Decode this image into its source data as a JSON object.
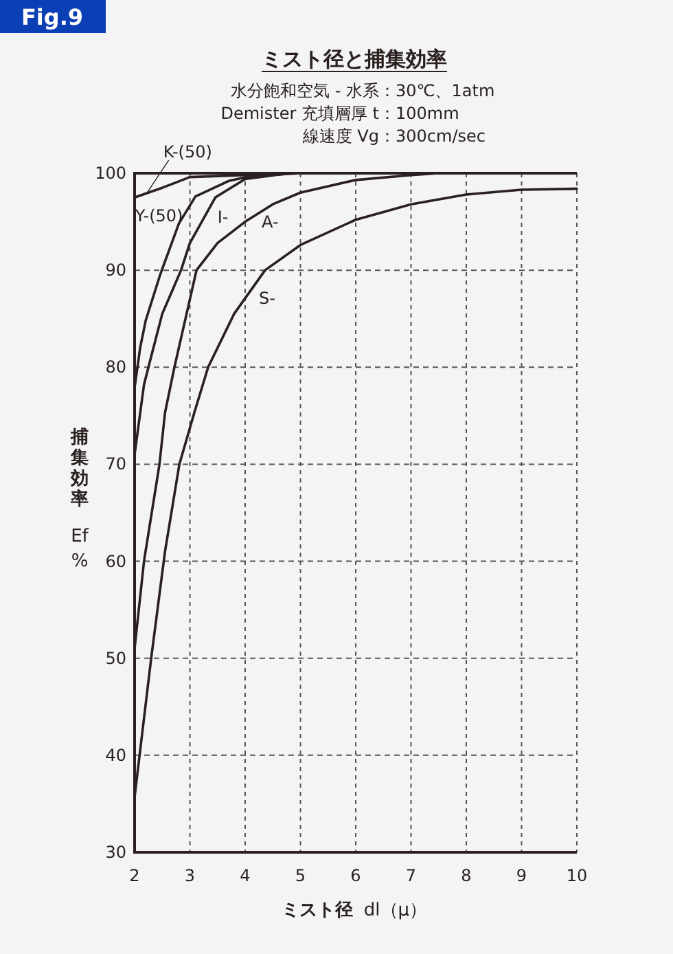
{
  "chart_data": {
    "type": "line",
    "title": "ミスト径と捕集効率",
    "subtitle": "水分飽和空気 - 水系：30℃、1atm\nDemister 充填層厚 t：100mm\n線速度 Vg：300cm/sec",
    "xlabel": "ミスト径 dl（μ）",
    "ylabel": "捕集効率 Ef %",
    "xlim": [
      2,
      10
    ],
    "ylim": [
      30,
      100
    ],
    "xticks": [
      2,
      3,
      4,
      5,
      6,
      7,
      8,
      9,
      10
    ],
    "yticks": [
      30,
      40,
      50,
      60,
      70,
      80,
      90,
      100
    ],
    "grid": true,
    "line_style": "solid",
    "marker": "none",
    "series": [
      {
        "color": "#2a2020",
        "x": [
          2,
          2.5,
          3,
          4,
          5
        ],
        "values": [
          97.5,
          98.5,
          99.6,
          99.8,
          100
        ]
      },
      {
        "color": "#2a2020",
        "x": [
          2,
          2.1,
          2.2,
          2.46,
          2.8,
          3.1,
          3.7,
          4.1,
          5
        ],
        "values": [
          77.9,
          82,
          84.8,
          89.5,
          94.8,
          97.6,
          99.2,
          99.7,
          100
        ]
      },
      {
        "color": "#2a2020",
        "x": [
          2,
          2.17,
          2.25,
          2.5,
          2.84,
          3,
          3.46,
          4,
          4.8
        ],
        "values": [
          71,
          78.2,
          80,
          85.5,
          90,
          92.8,
          97.5,
          99.4,
          100
        ]
      },
      {
        "color": "#2a2020",
        "x": [
          2,
          2.17,
          2.45,
          2.55,
          2.72,
          3.12,
          3.5,
          4,
          4.5,
          5,
          6,
          7,
          7.5
        ],
        "values": [
          51,
          60,
          70,
          75.3,
          80,
          90,
          92.8,
          95,
          96.8,
          98,
          99.3,
          99.8,
          100
        ]
      },
      {
        "color": "#2a2020",
        "x": [
          2,
          2.3,
          2.55,
          2.81,
          3.08,
          3.33,
          3.8,
          4.36,
          5,
          6,
          7,
          8,
          9,
          10
        ],
        "values": [
          35.7,
          50,
          61,
          70,
          75.3,
          80,
          85.5,
          90,
          92.6,
          95.2,
          96.8,
          97.8,
          98.3,
          98.4
        ]
      }
    ],
    "annotations": [
      "Fig.9",
      {
        "text": "K-(50)",
        "x": 2.22,
        "y": 97.94
      },
      {
        "text": "Y-(50)",
        "x": 2.95,
        "y": 96.2
      },
      {
        "text": "I-",
        "x": 3.3,
        "y": 95.87
      },
      {
        "text": "A-",
        "x": 4.1,
        "y": 95.36
      },
      {
        "text": "S-",
        "x": 4.05,
        "y": 87.51
      }
    ]
  }
}
